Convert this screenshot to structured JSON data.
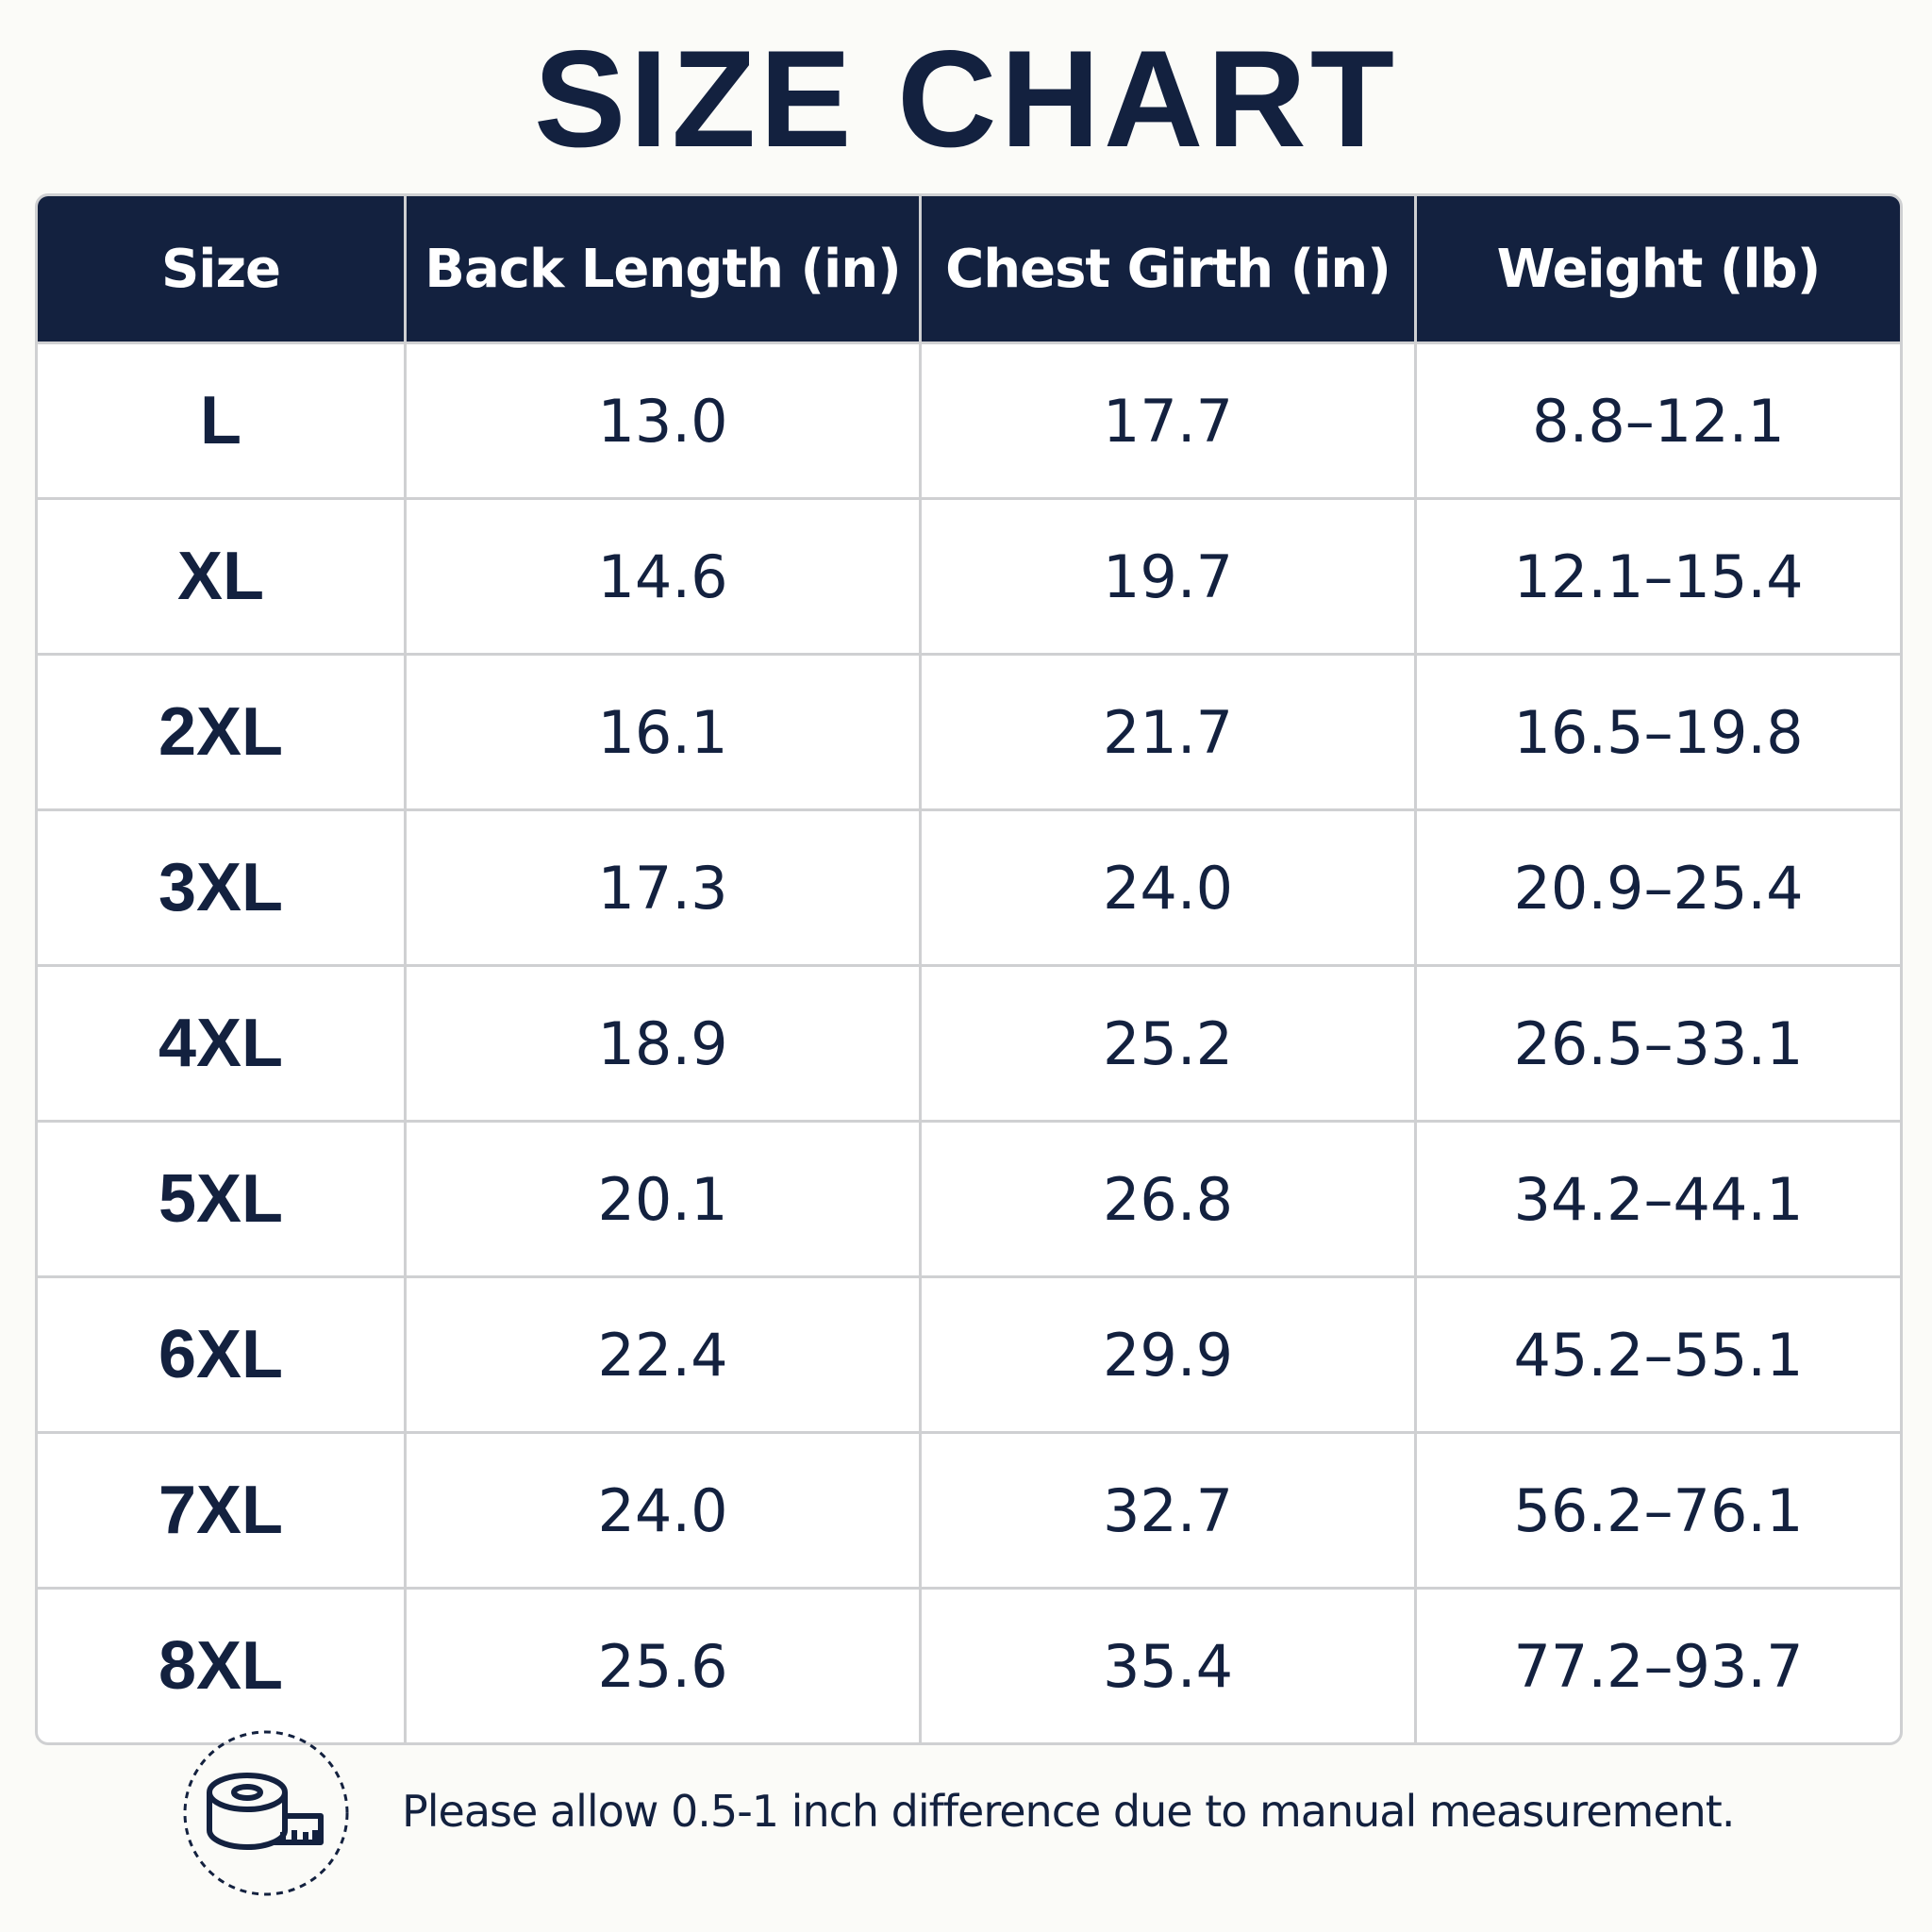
{
  "title": "SIZE CHART",
  "table": {
    "header": [
      "Size",
      "Back Length (in)",
      "Chest Girth (in)",
      "Weight (lb)"
    ],
    "rows": [
      [
        "L",
        "13.0",
        "17.7",
        "8.8–12.1"
      ],
      [
        "XL",
        "14.6",
        "19.7",
        "12.1–15.4"
      ],
      [
        "2XL",
        "16.1",
        "21.7",
        "16.5–19.8"
      ],
      [
        "3XL",
        "17.3",
        "24.0",
        "20.9–25.4"
      ],
      [
        "4XL",
        "18.9",
        "25.2",
        "26.5–33.1"
      ],
      [
        "5XL",
        "20.1",
        "26.8",
        "34.2–44.1"
      ],
      [
        "6XL",
        "22.4",
        "29.9",
        "45.2–55.1"
      ],
      [
        "7XL",
        "24.0",
        "32.7",
        "56.2–76.1"
      ],
      [
        "8XL",
        "25.6",
        "35.4",
        "77.2–93.7"
      ]
    ]
  },
  "note": "Please allow 0.5-1 inch difference due to manual measurement."
}
